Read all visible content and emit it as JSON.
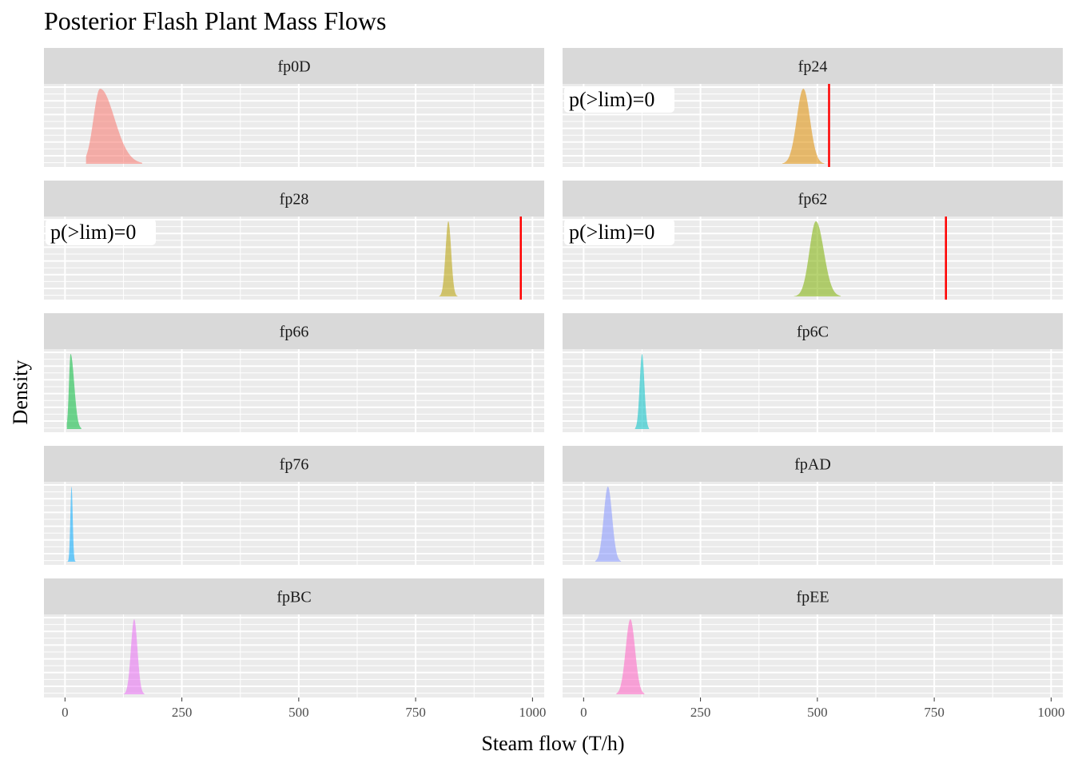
{
  "chart_data": {
    "type": "area",
    "title": "Posterior Flash Plant Mass Flows",
    "xlabel": "Steam flow (T/h)",
    "ylabel": "Density",
    "xlim": [
      -45,
      1025
    ],
    "xticks": [
      0,
      250,
      500,
      750,
      1000
    ],
    "xtick_labels": [
      "0",
      "250",
      "500",
      "750",
      "1000"
    ],
    "grid": true,
    "legend": "none",
    "facets": [
      {
        "name": "fp0D",
        "color": "#F8766D",
        "mode": 75,
        "spread": 14,
        "min": 45,
        "max": 165,
        "skew": 2.2,
        "limit": null,
        "annotation": ""
      },
      {
        "name": "fp24",
        "color": "#DE8C00",
        "mode": 470,
        "spread": 14,
        "min": 425,
        "max": 515,
        "skew": 1.0,
        "limit": 525,
        "annotation": "p(>lim)=0"
      },
      {
        "name": "fp28",
        "color": "#B79F00",
        "mode": 820,
        "spread": 6,
        "min": 800,
        "max": 840,
        "skew": 1.0,
        "limit": 975,
        "annotation": "p(>lim)=0"
      },
      {
        "name": "fp62",
        "color": "#7CAE00",
        "mode": 497,
        "spread": 14,
        "min": 450,
        "max": 550,
        "skew": 1.2,
        "limit": 775,
        "annotation": "p(>lim)=0"
      },
      {
        "name": "fp66",
        "color": "#00BA38",
        "mode": 12,
        "spread": 3.5,
        "min": 4,
        "max": 35,
        "skew": 2.2,
        "limit": null,
        "annotation": ""
      },
      {
        "name": "fp6C",
        "color": "#00BFC4",
        "mode": 125,
        "spread": 5,
        "min": 110,
        "max": 140,
        "skew": 1.0,
        "limit": null,
        "annotation": ""
      },
      {
        "name": "fp76",
        "color": "#00A9FF",
        "mode": 14,
        "spread": 2.5,
        "min": 5,
        "max": 25,
        "skew": 1.0,
        "limit": null,
        "annotation": ""
      },
      {
        "name": "fpAD",
        "color": "#8494FF",
        "mode": 52,
        "spread": 9,
        "min": 25,
        "max": 80,
        "skew": 1.0,
        "limit": null,
        "annotation": ""
      },
      {
        "name": "fpBC",
        "color": "#E76BF3",
        "mode": 148,
        "spread": 7,
        "min": 125,
        "max": 170,
        "skew": 1.0,
        "limit": null,
        "annotation": ""
      },
      {
        "name": "fpEE",
        "color": "#FF61C3",
        "mode": 100,
        "spread": 10,
        "min": 70,
        "max": 130,
        "skew": 1.0,
        "limit": null,
        "annotation": ""
      }
    ]
  }
}
